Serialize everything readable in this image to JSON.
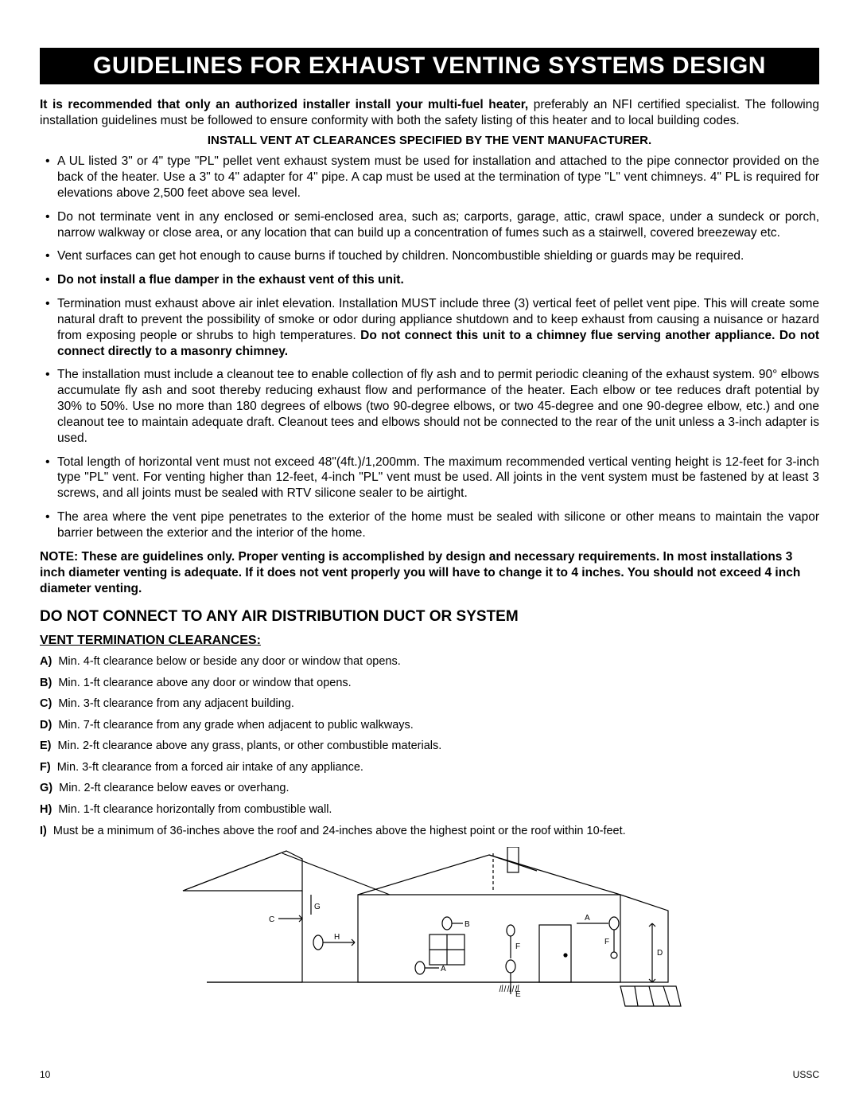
{
  "title": "GUIDELINES FOR EXHAUST VENTING SYSTEMS DESIGN",
  "intro_bold": "It is recommended that only an authorized installer install your multi-fuel heater,",
  "intro_rest": " preferably an NFI certified specialist. The following installation guidelines must be followed to ensure conformity with both the safety listing of this heater and to local building codes.",
  "sub_header": "INSTALL VENT AT CLEARANCES SPECIFIED BY THE VENT MANUFACTURER.",
  "bullets": [
    {
      "pre": "A UL listed 3\" or 4\" type \"PL\"  pellet vent exhaust  system must be used for installation and attached to the pipe connector provided on the back of the heater.  Use a 3\" to 4\" adapter for 4\" pipe.  A cap must be used at the termination of type \"L\" vent chimneys.  4\" PL is required for elevations above 2,500 feet above sea level."
    },
    {
      "pre": "Do not terminate vent in any enclosed or semi-enclosed area, such as; carports, garage, attic, crawl space, under a sundeck or porch, narrow walkway or close area, or any location that can build up a concentration of fumes such as a stairwell, covered breezeway etc."
    },
    {
      "pre": "Vent surfaces can get hot enough to cause burns if touched by children.  Noncombustible shielding or guards may be required."
    },
    {
      "bold_all": true,
      "pre": "Do not install a flue damper in the exhaust vent of this unit."
    },
    {
      "pre": "Termination must exhaust above air inlet elevation.  Installation MUST include three (3) vertical feet of pellet vent pipe.  This will create some natural draft to prevent the possibility of smoke or odor during appliance shutdown and  to keep exhaust from causing a nuisance or hazard from exposing people or shrubs to high temperatures.  ",
      "bold_tail": "Do not connect this unit to a chimney flue serving another appliance.  Do not connect directly to a masonry chimney."
    },
    {
      "pre": "The installation must include a cleanout tee to enable collection of fly ash and to permit periodic cleaning of the exhaust system.  90° elbows accumulate fly ash and soot thereby reducing exhaust flow and performance of the heater.  Each elbow or tee reduces draft potential by 30% to 50%.  Use no more than 180 degrees of elbows (two 90-degree elbows, or two 45-degree and one 90-degree elbow, etc.) and one cleanout tee to maintain adequate draft.  Cleanout tees and elbows should not be connected to the rear of the unit unless a 3-inch adapter is used."
    },
    {
      "pre": "Total length of horizontal vent must not exceed 48\"(4ft.)/1,200mm.  The maximum recommended vertical venting height is 12-feet for 3-inch type \"PL\" vent.  For venting higher than 12-feet, 4-inch \"PL\" vent must be used. All joints in the vent system must be fastened by at least 3 screws, and all joints must be sealed with RTV silicone sealer to be airtight."
    },
    {
      "pre": "The area where the vent pipe penetrates to the exterior of the home must be sealed with silicone or other means to maintain the vapor barrier between the exterior and the interior of the home."
    }
  ],
  "note": "NOTE:  These are guidelines only.  Proper venting is accomplished by design and necessary requirements.  In most installations 3 inch diameter venting is adequate.  If it does not vent properly you will have to change it to 4 inches.  You should not exceed 4 inch diameter venting.",
  "h2": "DO NOT CONNECT TO ANY AIR DISTRIBUTION DUCT OR SYSTEM",
  "h3": "VENT TERMINATION CLEARANCES:",
  "clearances": [
    {
      "k": "A)",
      "v": "Min. 4-ft clearance below or beside any door or window that opens."
    },
    {
      "k": "B)",
      "v": "Min. 1-ft clearance above any door or window that opens."
    },
    {
      "k": "C)",
      "v": "Min. 3-ft clearance from any adjacent building."
    },
    {
      "k": "D)",
      "v": "Min. 7-ft clearance from any grade when adjacent to public walkways."
    },
    {
      "k": "E)",
      "v": "Min. 2-ft clearance above any grass, plants, or other combustible materials."
    },
    {
      "k": "F)",
      "v": "Min. 3-ft clearance from a forced air intake of any appliance."
    },
    {
      "k": "G)",
      "v": "Min. 2-ft clearance below eaves or overhang."
    },
    {
      "k": "H)",
      "v": "Min. 1-ft clearance horizontally from combustible wall."
    },
    {
      "k": "I)",
      "v": "Must be a minimum of 36-inches above the roof and 24-inches above the highest point or the roof within 10-feet."
    }
  ],
  "diagram": {
    "stroke": "#000000",
    "labels": [
      "A",
      "B",
      "C",
      "D",
      "E",
      "F",
      "G",
      "H"
    ],
    "font_size": 10
  },
  "footer": {
    "page": "10",
    "brand": "USSC"
  }
}
